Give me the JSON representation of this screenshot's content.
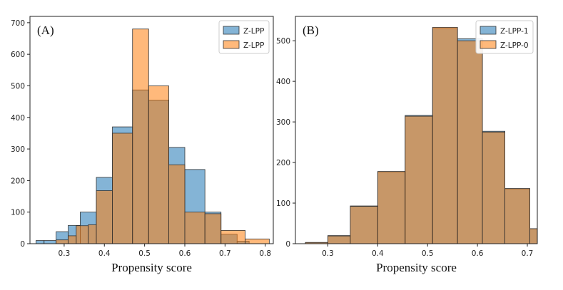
{
  "chart_data": [
    {
      "type": "histogram",
      "panel_label": "(A)",
      "xlabel": "Propensity score",
      "ylabel": "",
      "xlim": [
        0.215,
        0.82
      ],
      "ylim": [
        0,
        720
      ],
      "xticks": [
        0.3,
        0.4,
        0.5,
        0.6,
        0.7,
        0.8
      ],
      "yticks": [
        0,
        100,
        200,
        300,
        400,
        500,
        600,
        700
      ],
      "legend_position": "top-right",
      "series": [
        {
          "name": "Z-LPP",
          "color": "#1f77b4",
          "bins": [
            [
              0.23,
              0.25,
              10
            ],
            [
              0.25,
              0.28,
              10
            ],
            [
              0.28,
              0.31,
              38
            ],
            [
              0.31,
              0.34,
              58
            ],
            [
              0.34,
              0.38,
              100
            ],
            [
              0.38,
              0.42,
              210
            ],
            [
              0.42,
              0.47,
              370
            ],
            [
              0.47,
              0.51,
              487
            ],
            [
              0.51,
              0.56,
              455
            ],
            [
              0.56,
              0.6,
              305
            ],
            [
              0.6,
              0.65,
              235
            ],
            [
              0.65,
              0.69,
              100
            ],
            [
              0.69,
              0.73,
              30
            ],
            [
              0.73,
              0.76,
              8
            ]
          ]
        },
        {
          "name": "Z-LPP",
          "color": "#ff7f0e",
          "bins": [
            [
              0.28,
              0.31,
              12
            ],
            [
              0.31,
              0.33,
              25
            ],
            [
              0.33,
              0.36,
              57
            ],
            [
              0.36,
              0.38,
              60
            ],
            [
              0.38,
              0.42,
              168
            ],
            [
              0.42,
              0.47,
              350
            ],
            [
              0.47,
              0.51,
              680
            ],
            [
              0.51,
              0.56,
              500
            ],
            [
              0.56,
              0.6,
              250
            ],
            [
              0.6,
              0.65,
              100
            ],
            [
              0.65,
              0.69,
              95
            ],
            [
              0.69,
              0.75,
              42
            ],
            [
              0.75,
              0.81,
              15
            ]
          ]
        }
      ]
    },
    {
      "type": "histogram",
      "panel_label": "(B)",
      "xlabel": "Propensity score",
      "ylabel": "",
      "xlim": [
        0.235,
        0.72
      ],
      "ylim": [
        0,
        560
      ],
      "xticks": [
        0.3,
        0.4,
        0.5,
        0.6,
        0.7
      ],
      "yticks": [
        0,
        100,
        200,
        300,
        400,
        500
      ],
      "legend_position": "top-right",
      "series": [
        {
          "name": "Z-LPP-1",
          "color": "#1f77b4",
          "bins": [
            [
              0.255,
              0.3,
              3
            ],
            [
              0.3,
              0.345,
              20
            ],
            [
              0.345,
              0.4,
              93
            ],
            [
              0.4,
              0.455,
              177
            ],
            [
              0.455,
              0.51,
              316
            ],
            [
              0.51,
              0.56,
              530
            ],
            [
              0.56,
              0.61,
              505
            ],
            [
              0.61,
              0.655,
              277
            ],
            [
              0.655,
              0.705,
              135
            ],
            [
              0.705,
              0.72,
              37
            ]
          ]
        },
        {
          "name": "Z-LPP-0",
          "color": "#ff7f0e",
          "bins": [
            [
              0.255,
              0.3,
              3
            ],
            [
              0.3,
              0.345,
              19
            ],
            [
              0.345,
              0.4,
              92
            ],
            [
              0.4,
              0.455,
              178
            ],
            [
              0.455,
              0.51,
              314
            ],
            [
              0.51,
              0.56,
              533
            ],
            [
              0.56,
              0.61,
              500
            ],
            [
              0.61,
              0.655,
              275
            ],
            [
              0.655,
              0.705,
              136
            ],
            [
              0.705,
              0.72,
              37
            ]
          ]
        }
      ]
    }
  ]
}
